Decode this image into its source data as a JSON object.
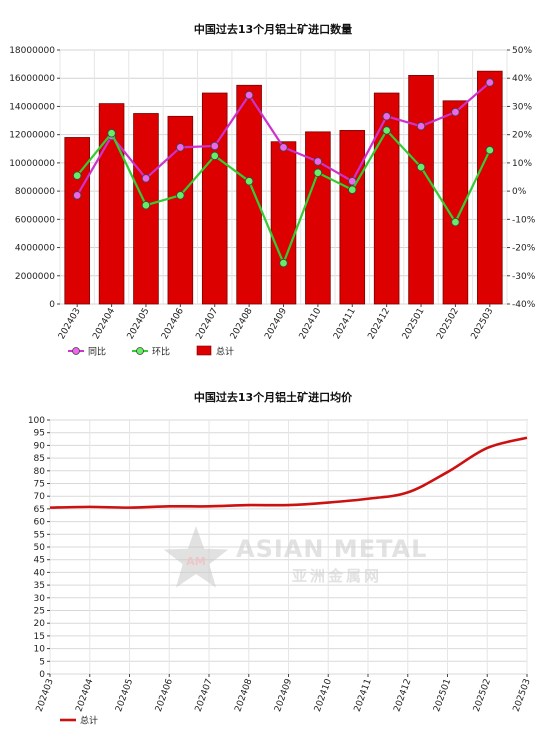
{
  "chart_data": [
    {
      "type": "bar+line",
      "title": "中国过去13个月铝土矿进口数量",
      "categories": [
        "202403",
        "202404",
        "202405",
        "202406",
        "202407",
        "202408",
        "202409",
        "202410",
        "202411",
        "202412",
        "202501",
        "202502",
        "202503"
      ],
      "ylim": [
        0,
        18000000
      ],
      "y_ticks": [
        "0",
        "2000000",
        "4000000",
        "6000000",
        "8000000",
        "10000000",
        "12000000",
        "14000000",
        "16000000",
        "18000000"
      ],
      "y2lim": [
        -40,
        50
      ],
      "y2_ticks": [
        "-40%",
        "-30%",
        "-20%",
        "-10%",
        "0%",
        "10%",
        "20%",
        "30%",
        "40%",
        "50%"
      ],
      "grid": true,
      "legend_position": "bottom-left",
      "series": [
        {
          "name": "同比",
          "kind": "line",
          "axis": "right",
          "color": "#cc33cc",
          "marker_color": "#ee66ee",
          "values": [
            -1.5,
            19.5,
            4.5,
            15.5,
            16,
            34,
            15.5,
            10.5,
            3.5,
            26.5,
            23,
            28,
            38.5
          ]
        },
        {
          "name": "环比",
          "kind": "line",
          "axis": "right",
          "color": "#33cc33",
          "marker_color": "#66ee66",
          "values": [
            5.5,
            20.5,
            -5,
            -1.5,
            12.5,
            3.5,
            -25.5,
            6.5,
            0.5,
            21.5,
            8.5,
            -11,
            14.5
          ]
        },
        {
          "name": "总计",
          "kind": "bar",
          "axis": "left",
          "color": "#dd0000",
          "values": [
            11800000,
            14200000,
            13500000,
            13300000,
            14950000,
            15500000,
            11500000,
            12200000,
            12300000,
            14950000,
            16200000,
            14400000,
            16500000
          ]
        }
      ]
    },
    {
      "type": "line",
      "title": "中国过去13个月铝土矿进口均价",
      "categories": [
        "202403",
        "202404",
        "202405",
        "202406",
        "202407",
        "202408",
        "202409",
        "202410",
        "202411",
        "202412",
        "202501",
        "202502",
        "202503"
      ],
      "ylim": [
        0,
        100
      ],
      "y_ticks": [
        "0",
        "5",
        "10",
        "15",
        "20",
        "25",
        "30",
        "35",
        "40",
        "45",
        "50",
        "55",
        "60",
        "65",
        "70",
        "75",
        "80",
        "85",
        "90",
        "95",
        "100"
      ],
      "grid": true,
      "legend_position": "bottom-left",
      "series": [
        {
          "name": "总计",
          "color": "#cc1111",
          "values": [
            65.5,
            65.8,
            65.5,
            66,
            66,
            66.5,
            66.5,
            67.5,
            69,
            71.5,
            79.5,
            89,
            93
          ]
        }
      ]
    }
  ],
  "watermark": {
    "logo_letters": "AM",
    "en": "ASIAN METAL",
    "cn": "亚洲金属网"
  }
}
